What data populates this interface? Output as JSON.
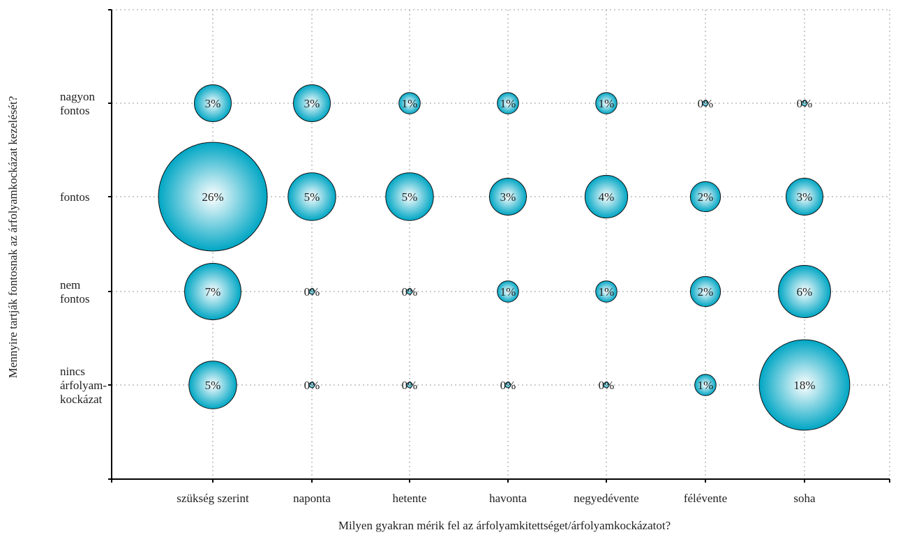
{
  "chart_data": {
    "type": "bubble",
    "title": "",
    "xlabel": "Milyen gyakran mérik fel az árfolyamkitettséget/árfolyamkockázatot?",
    "ylabel": "Mennyire tartják fontosnak az árfolyamkockázat kezelését?",
    "x_categories": [
      "szükség szerint",
      "naponta",
      "hetente",
      "havonta",
      "negyedévente",
      "félévente",
      "soha"
    ],
    "y_categories": [
      {
        "lines": [
          "nagyon",
          "fontos"
        ]
      },
      {
        "lines": [
          "fontos"
        ]
      },
      {
        "lines": [
          "nem",
          "fontos"
        ]
      },
      {
        "lines": [
          "nincs",
          "árfolyam-",
          "kockázat"
        ]
      }
    ],
    "grid": true,
    "legend": "none",
    "colors": {
      "bubble_edge": "#00a6c4",
      "bubble_center": "#ffffff",
      "bubble_stroke": "#111111",
      "grid": "#9a9a9a",
      "axis": "#000000"
    },
    "series": [
      {
        "y": "nagyon fontos",
        "values": [
          3,
          3,
          1,
          1,
          1,
          0,
          0
        ],
        "labels": [
          "3%",
          "3%",
          "1%",
          "1%",
          "1%",
          "0%",
          "0%"
        ]
      },
      {
        "y": "fontos",
        "values": [
          26,
          5,
          5,
          3,
          4,
          2,
          3
        ],
        "labels": [
          "26%",
          "5%",
          "5%",
          "3%",
          "4%",
          "2%",
          "3%"
        ]
      },
      {
        "y": "nem fontos",
        "values": [
          7,
          0,
          0,
          1,
          1,
          2,
          6
        ],
        "labels": [
          "7%",
          "0%",
          "0%",
          "1%",
          "1%",
          "2%",
          "6%"
        ]
      },
      {
        "y": "nincs árfolyamkockázat",
        "values": [
          5,
          0,
          0,
          0,
          0,
          1,
          18
        ],
        "labels": [
          "5%",
          "0%",
          "0%",
          "0%",
          "0%",
          "1%",
          "18%"
        ]
      }
    ]
  }
}
